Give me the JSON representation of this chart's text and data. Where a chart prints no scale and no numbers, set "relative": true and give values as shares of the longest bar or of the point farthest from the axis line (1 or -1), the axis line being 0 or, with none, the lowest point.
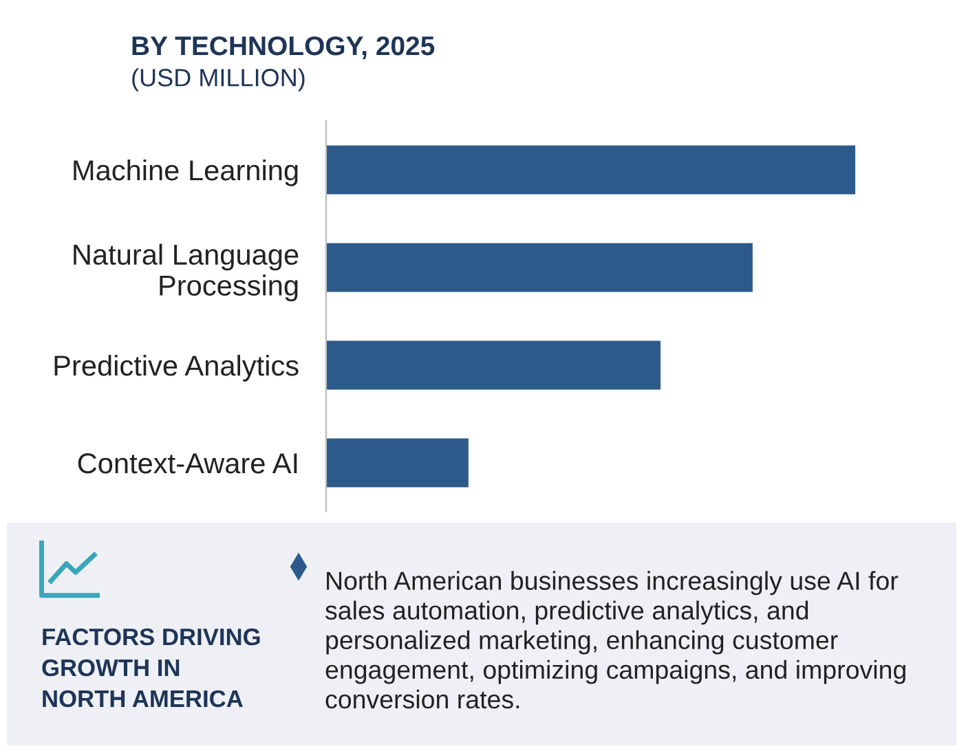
{
  "chart_data": {
    "type": "bar",
    "orientation": "horizontal",
    "relative": true,
    "title": "BY TECHNOLOGY, 2025",
    "subtitle": "(USD MILLION)",
    "categories": [
      "Machine Learning",
      "Natural Language\nProcessing",
      "Predictive Analytics",
      "Context-Aware AI"
    ],
    "values": [
      1,
      0.806,
      0.632,
      0.269
    ],
    "color": "#2c5b8b",
    "grid": false,
    "legend": false,
    "annotations": [
      "FACTORS DRIVING\nGROWTH IN\nNORTH AMERICA",
      "North American businesses increasingly use AI for\nsales automation, predictive analytics, and\npersonalized marketing, enhancing customer\nengagement, optimizing campaigns, and improving\nconversion rates."
    ]
  }
}
